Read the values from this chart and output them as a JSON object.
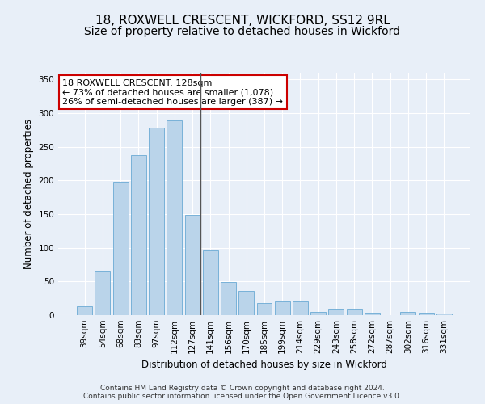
{
  "title": "18, ROXWELL CRESCENT, WICKFORD, SS12 9RL",
  "subtitle": "Size of property relative to detached houses in Wickford",
  "xlabel": "Distribution of detached houses by size in Wickford",
  "ylabel": "Number of detached properties",
  "categories": [
    "39sqm",
    "54sqm",
    "68sqm",
    "83sqm",
    "97sqm",
    "112sqm",
    "127sqm",
    "141sqm",
    "156sqm",
    "170sqm",
    "185sqm",
    "199sqm",
    "214sqm",
    "229sqm",
    "243sqm",
    "258sqm",
    "272sqm",
    "287sqm",
    "302sqm",
    "316sqm",
    "331sqm"
  ],
  "values": [
    13,
    65,
    198,
    238,
    278,
    289,
    149,
    96,
    49,
    36,
    18,
    20,
    20,
    5,
    9,
    9,
    4,
    0,
    5,
    4,
    3
  ],
  "bar_color": "#bad4ea",
  "bar_edge_color": "#6aaad4",
  "highlight_bar_index": 6,
  "highlight_line_color": "#555555",
  "annotation_line1": "18 ROXWELL CRESCENT: 128sqm",
  "annotation_line2": "← 73% of detached houses are smaller (1,078)",
  "annotation_line3": "26% of semi-detached houses are larger (387) →",
  "annotation_box_color": "#ffffff",
  "annotation_box_edge_color": "#cc0000",
  "ylim": [
    0,
    360
  ],
  "yticks": [
    0,
    50,
    100,
    150,
    200,
    250,
    300,
    350
  ],
  "background_color": "#e8eff8",
  "plot_bg_color": "#e8eff8",
  "grid_color": "#ffffff",
  "footer_line1": "Contains HM Land Registry data © Crown copyright and database right 2024.",
  "footer_line2": "Contains public sector information licensed under the Open Government Licence v3.0.",
  "title_fontsize": 11,
  "subtitle_fontsize": 10,
  "axis_label_fontsize": 8.5,
  "tick_fontsize": 7.5,
  "annotation_fontsize": 8,
  "footer_fontsize": 6.5
}
